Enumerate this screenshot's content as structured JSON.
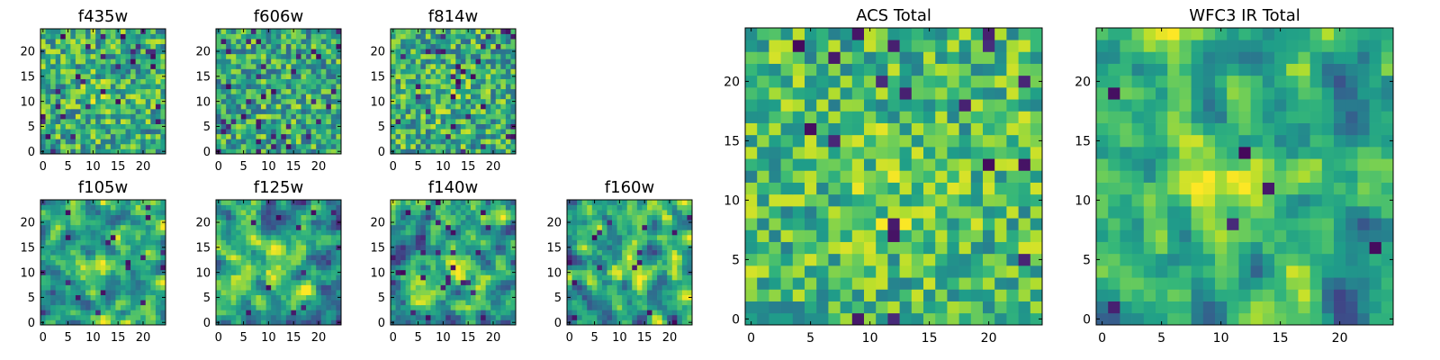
{
  "chart_data": {
    "type": "heatmap",
    "colormap": "viridis",
    "grid_size": 25,
    "panels": [
      {
        "title": "f435w",
        "xticks": [
          0,
          5,
          10,
          15,
          20
        ],
        "yticks": [
          0,
          5,
          10,
          15,
          20
        ],
        "xlim": [
          0,
          24
        ],
        "ylim": [
          0,
          24
        ],
        "seed": 11,
        "smooth": 0,
        "base": 0.62,
        "noise": 0.3,
        "peak": 0.1,
        "dark": 0.05
      },
      {
        "title": "f606w",
        "xticks": [
          0,
          5,
          10,
          15,
          20
        ],
        "yticks": [
          0,
          5,
          10,
          15,
          20
        ],
        "xlim": [
          0,
          24
        ],
        "ylim": [
          0,
          24
        ],
        "seed": 23,
        "smooth": 0,
        "base": 0.6,
        "noise": 0.3,
        "peak": 0.05,
        "dark": 0.05
      },
      {
        "title": "f814w",
        "xticks": [
          0,
          5,
          10,
          15,
          20
        ],
        "yticks": [
          0,
          5,
          10,
          15,
          20
        ],
        "xlim": [
          0,
          24
        ],
        "ylim": [
          0,
          24
        ],
        "seed": 37,
        "smooth": 0,
        "base": 0.62,
        "noise": 0.3,
        "peak": 0.08,
        "dark": 0.05
      },
      {
        "title": "f105w",
        "xticks": [
          0,
          5,
          10,
          15,
          20
        ],
        "yticks": [
          0,
          5,
          10,
          15,
          20
        ],
        "xlim": [
          0,
          24
        ],
        "ylim": [
          0,
          24
        ],
        "seed": 41,
        "smooth": 1,
        "base": 0.58,
        "noise": 0.35,
        "peak": 0.22,
        "dark": 0.02
      },
      {
        "title": "f125w",
        "xticks": [
          0,
          5,
          10,
          15,
          20
        ],
        "yticks": [
          0,
          5,
          10,
          15,
          20
        ],
        "xlim": [
          0,
          24
        ],
        "ylim": [
          0,
          24
        ],
        "seed": 53,
        "smooth": 1,
        "base": 0.58,
        "noise": 0.35,
        "peak": 0.22,
        "dark": 0.02
      },
      {
        "title": "f140w",
        "xticks": [
          0,
          5,
          10,
          15,
          20
        ],
        "yticks": [
          0,
          5,
          10,
          15,
          20
        ],
        "xlim": [
          0,
          24
        ],
        "ylim": [
          0,
          24
        ],
        "seed": 67,
        "smooth": 1,
        "base": 0.58,
        "noise": 0.38,
        "peak": 0.22,
        "dark": 0.03
      },
      {
        "title": "f160w",
        "xticks": [
          0,
          5,
          10,
          15,
          20
        ],
        "yticks": [
          0,
          5,
          10,
          15,
          20
        ],
        "xlim": [
          0,
          24
        ],
        "ylim": [
          0,
          24
        ],
        "seed": 79,
        "smooth": 1,
        "base": 0.6,
        "noise": 0.38,
        "peak": 0.25,
        "dark": 0.03
      },
      {
        "title": "ACS Total",
        "xticks": [
          0,
          5,
          10,
          15,
          20
        ],
        "yticks": [
          0,
          5,
          10,
          15,
          20
        ],
        "xlim": [
          0,
          24
        ],
        "ylim": [
          0,
          24
        ],
        "seed": 97,
        "smooth": 0,
        "base": 0.68,
        "noise": 0.26,
        "peak": 0.1,
        "dark": 0.035
      },
      {
        "title": "WFC3 IR Total",
        "xticks": [
          0,
          5,
          10,
          15,
          20
        ],
        "yticks": [
          0,
          5,
          10,
          15,
          20
        ],
        "xlim": [
          0,
          24
        ],
        "ylim": [
          0,
          24
        ],
        "seed": 131,
        "smooth": 1,
        "base": 0.6,
        "noise": 0.3,
        "peak": 0.32,
        "dark": 0.02
      }
    ]
  }
}
